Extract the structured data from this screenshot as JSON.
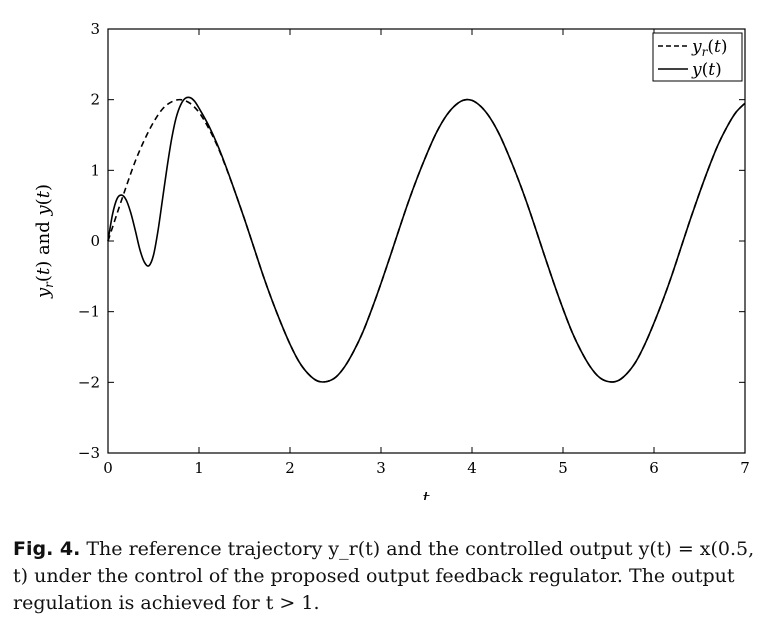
{
  "chart_data": {
    "type": "line",
    "xlabel": "t",
    "ylabel": "y_r(t) and y(t)",
    "xlim": [
      0,
      7
    ],
    "ylim": [
      -3,
      3
    ],
    "xticks": [
      0,
      1,
      2,
      3,
      4,
      5,
      6,
      7
    ],
    "yticks": [
      -3,
      -2,
      -1,
      0,
      1,
      2,
      3
    ],
    "ytick_labels": [
      "−3",
      "−2",
      "−1",
      "0",
      "1",
      "2",
      "3"
    ],
    "grid": false,
    "legend_position": "top-right",
    "series": [
      {
        "name": "y_r(t)",
        "style": "dashed",
        "color": "#000000",
        "x": [
          0,
          0.1,
          0.2,
          0.3,
          0.4,
          0.5,
          0.6,
          0.7,
          0.8,
          0.9,
          1.0,
          1.1,
          1.2,
          1.3,
          1.4,
          1.5,
          1.6,
          1.7,
          1.8,
          1.9,
          2.0,
          2.1,
          2.2,
          2.3,
          2.4,
          2.5,
          2.6,
          2.7,
          2.8,
          2.9,
          3.0,
          3.1,
          3.2,
          3.3,
          3.4,
          3.5,
          3.6,
          3.7,
          3.8,
          3.9,
          4.0,
          4.1,
          4.2,
          4.3,
          4.4,
          4.5,
          4.6,
          4.7,
          4.8,
          4.9,
          5.0,
          5.1,
          5.2,
          5.3,
          5.4,
          5.5,
          5.6,
          5.7,
          5.8,
          5.9,
          6.0,
          6.1,
          6.2,
          6.3,
          6.4,
          6.5,
          6.6,
          6.7,
          6.8,
          6.9,
          7.0
        ],
        "y": [
          0,
          0.39,
          0.77,
          1.13,
          1.43,
          1.68,
          1.87,
          1.97,
          2.0,
          1.95,
          1.82,
          1.61,
          1.35,
          1.03,
          0.68,
          0.31,
          -0.08,
          -0.47,
          -0.83,
          -1.16,
          -1.46,
          -1.71,
          -1.88,
          -1.98,
          -1.99,
          -1.93,
          -1.78,
          -1.56,
          -1.29,
          -0.96,
          -0.6,
          -0.22,
          0.17,
          0.55,
          0.9,
          1.22,
          1.51,
          1.74,
          1.9,
          1.99,
          1.99,
          1.9,
          1.74,
          1.51,
          1.22,
          0.9,
          0.55,
          0.17,
          -0.22,
          -0.6,
          -0.96,
          -1.29,
          -1.56,
          -1.78,
          -1.93,
          -1.99,
          -1.98,
          -1.88,
          -1.71,
          -1.46,
          -1.16,
          -0.83,
          -0.47,
          -0.08,
          0.31,
          0.68,
          1.03,
          1.35,
          1.61,
          1.82,
          1.95
        ]
      },
      {
        "name": "y(t)",
        "style": "solid",
        "color": "#000000",
        "x": [
          0,
          0.05,
          0.1,
          0.15,
          0.2,
          0.25,
          0.3,
          0.35,
          0.4,
          0.45,
          0.5,
          0.55,
          0.6,
          0.65,
          0.7,
          0.75,
          0.8,
          0.85,
          0.9,
          0.95,
          1.0,
          1.1,
          1.2,
          1.3,
          1.4,
          1.5,
          1.6,
          1.7,
          1.8,
          1.9,
          2.0,
          2.1,
          2.2,
          2.3,
          2.4,
          2.5,
          2.6,
          2.7,
          2.8,
          2.9,
          3.0,
          3.1,
          3.2,
          3.3,
          3.4,
          3.5,
          3.6,
          3.7,
          3.8,
          3.9,
          4.0,
          4.1,
          4.2,
          4.3,
          4.4,
          4.5,
          4.6,
          4.7,
          4.8,
          4.9,
          5.0,
          5.1,
          5.2,
          5.3,
          5.4,
          5.5,
          5.6,
          5.7,
          5.8,
          5.9,
          6.0,
          6.1,
          6.2,
          6.3,
          6.4,
          6.5,
          6.6,
          6.7,
          6.8,
          6.9,
          7.0
        ],
        "y": [
          0,
          0.38,
          0.6,
          0.65,
          0.58,
          0.4,
          0.15,
          -0.12,
          -0.3,
          -0.35,
          -0.2,
          0.15,
          0.6,
          1.05,
          1.45,
          1.75,
          1.93,
          2.02,
          2.03,
          1.98,
          1.88,
          1.65,
          1.37,
          1.04,
          0.68,
          0.31,
          -0.08,
          -0.47,
          -0.83,
          -1.16,
          -1.46,
          -1.71,
          -1.88,
          -1.98,
          -1.99,
          -1.93,
          -1.78,
          -1.56,
          -1.29,
          -0.96,
          -0.6,
          -0.22,
          0.17,
          0.55,
          0.9,
          1.22,
          1.51,
          1.74,
          1.9,
          1.99,
          1.99,
          1.9,
          1.74,
          1.51,
          1.22,
          0.9,
          0.55,
          0.17,
          -0.22,
          -0.6,
          -0.96,
          -1.29,
          -1.56,
          -1.78,
          -1.93,
          -1.99,
          -1.98,
          -1.88,
          -1.71,
          -1.46,
          -1.16,
          -0.83,
          -0.47,
          -0.08,
          0.31,
          0.68,
          1.03,
          1.35,
          1.61,
          1.82,
          1.95
        ]
      }
    ]
  },
  "caption": {
    "label": "Fig. 4.",
    "text": "The reference trajectory y_r(t) and the controlled output y(t) = x(0.5, t) under the control of the proposed output feedback regulator. The output regulation is achieved for t > 1."
  }
}
